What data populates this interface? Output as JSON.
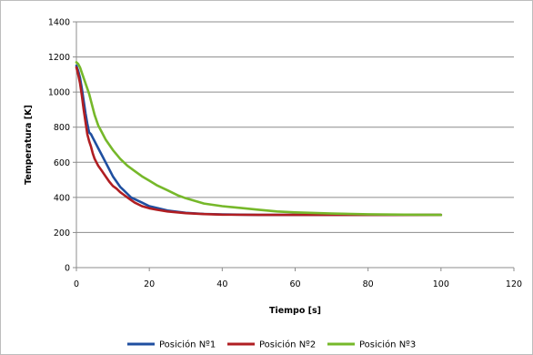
{
  "chart_data": {
    "type": "line",
    "title": "",
    "xlabel": "Tiempo [s]",
    "ylabel": "Temperatura [K]",
    "xlim": [
      0,
      120
    ],
    "ylim": [
      0,
      1400
    ],
    "xticks": [
      0,
      20,
      40,
      60,
      80,
      100,
      120
    ],
    "yticks": [
      0,
      200,
      400,
      600,
      800,
      1000,
      1200,
      1400
    ],
    "grid": "horizontal",
    "legend_position": "bottom",
    "series": [
      {
        "name": "Posición Nº1",
        "color": "#1f4fa0",
        "x": [
          0,
          0.5,
          1,
          1.5,
          2,
          2.5,
          3,
          3.5,
          4,
          4.5,
          5,
          5.5,
          6,
          7,
          8,
          9,
          10,
          11,
          12,
          13,
          14,
          15,
          16,
          18,
          20,
          22,
          25,
          30,
          35,
          40,
          50,
          60,
          70,
          80,
          90,
          100
        ],
        "y": [
          1150,
          1120,
          1080,
          1020,
          950,
          880,
          820,
          770,
          760,
          740,
          720,
          700,
          680,
          640,
          600,
          560,
          520,
          490,
          460,
          440,
          420,
          400,
          390,
          370,
          350,
          340,
          325,
          312,
          306,
          303,
          300,
          300,
          300,
          300,
          300,
          300
        ]
      },
      {
        "name": "Posición Nº2",
        "color": "#b01e22",
        "x": [
          0,
          0.5,
          1,
          1.5,
          2,
          2.5,
          3,
          3.5,
          4,
          4.5,
          5,
          5.5,
          6,
          7,
          8,
          9,
          10,
          11,
          12,
          13,
          14,
          15,
          16,
          18,
          20,
          22,
          25,
          30,
          35,
          40,
          50,
          60,
          70,
          80,
          90,
          100
        ],
        "y": [
          1140,
          1100,
          1050,
          980,
          900,
          830,
          760,
          720,
          690,
          650,
          620,
          600,
          580,
          550,
          520,
          490,
          465,
          450,
          430,
          415,
          400,
          385,
          370,
          350,
          338,
          330,
          320,
          310,
          305,
          302,
          300,
          300,
          300,
          300,
          300,
          300
        ]
      },
      {
        "name": "Posición Nº3",
        "color": "#76b82a",
        "x": [
          0,
          0.5,
          1,
          1.5,
          2,
          2.5,
          3,
          3.5,
          4,
          4.5,
          5,
          5.5,
          6,
          7,
          8,
          9,
          10,
          12,
          14,
          16,
          18,
          20,
          22,
          25,
          28,
          30,
          35,
          40,
          45,
          50,
          55,
          60,
          70,
          80,
          90,
          100
        ],
        "y": [
          1170,
          1160,
          1140,
          1110,
          1080,
          1050,
          1020,
          990,
          950,
          910,
          870,
          840,
          810,
          770,
          730,
          700,
          670,
          620,
          580,
          550,
          520,
          495,
          470,
          440,
          410,
          395,
          365,
          350,
          340,
          330,
          320,
          315,
          308,
          304,
          302,
          300
        ]
      }
    ]
  }
}
